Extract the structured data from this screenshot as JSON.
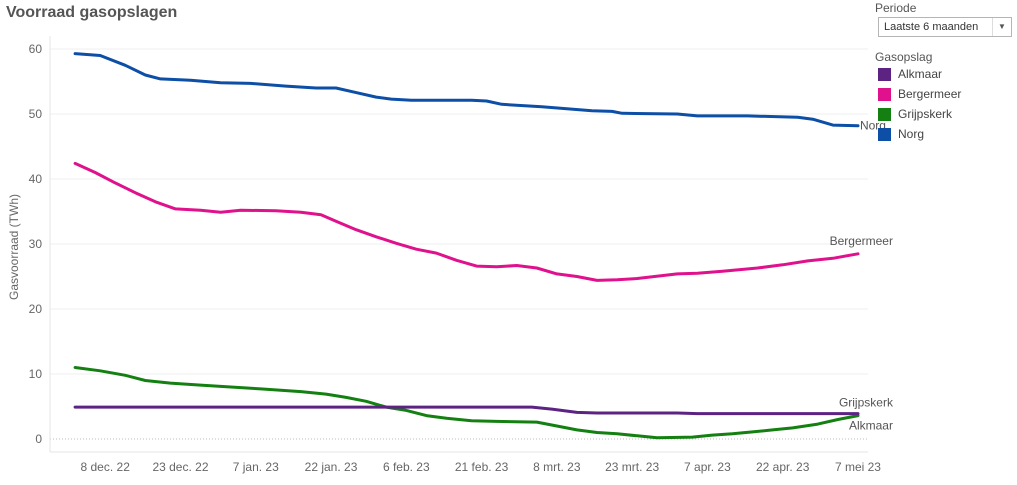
{
  "title": "Voorraad gasopslagen",
  "filters": {
    "period_heading": "Periode",
    "period_value": "Laatste 6 maanden",
    "legend_heading": "Gasopslag"
  },
  "legend": [
    {
      "label": "Alkmaar",
      "color": "#5c2383"
    },
    {
      "label": "Bergermeer",
      "color": "#e0118c"
    },
    {
      "label": "Grijpskerk",
      "color": "#138011"
    },
    {
      "label": "Norg",
      "color": "#0d4ea6"
    }
  ],
  "chart_data": {
    "type": "line",
    "title": "Voorraad gasopslagen",
    "ylabel": "Gasvoorraad (TWh)",
    "xlabel": "",
    "ylim": [
      -2,
      62
    ],
    "yticks": [
      0,
      10,
      20,
      30,
      40,
      50,
      60
    ],
    "xlim": [
      "2022-11-27",
      "2023-05-09"
    ],
    "xticks": [
      {
        "date": "2022-12-08",
        "label": "8 dec. 22"
      },
      {
        "date": "2022-12-23",
        "label": "23 dec. 22"
      },
      {
        "date": "2023-01-07",
        "label": "7 jan. 23"
      },
      {
        "date": "2023-01-22",
        "label": "22 jan. 23"
      },
      {
        "date": "2023-02-06",
        "label": "6 feb. 23"
      },
      {
        "date": "2023-02-21",
        "label": "21 feb. 23"
      },
      {
        "date": "2023-03-08",
        "label": "8 mrt. 23"
      },
      {
        "date": "2023-03-23",
        "label": "23 mrt. 23"
      },
      {
        "date": "2023-04-07",
        "label": "7 apr. 23"
      },
      {
        "date": "2023-04-22",
        "label": "22 apr. 23"
      },
      {
        "date": "2023-05-07",
        "label": "7 mei 23"
      }
    ],
    "grid": true,
    "legend_position": "right",
    "series": [
      {
        "name": "Norg",
        "color": "#0d4ea6",
        "end_label": "Norg",
        "points": [
          [
            "2022-12-02",
            59.3
          ],
          [
            "2022-12-07",
            59.0
          ],
          [
            "2022-12-12",
            57.5
          ],
          [
            "2022-12-16",
            56.0
          ],
          [
            "2022-12-19",
            55.4
          ],
          [
            "2022-12-25",
            55.2
          ],
          [
            "2022-12-31",
            54.8
          ],
          [
            "2023-01-06",
            54.7
          ],
          [
            "2023-01-13",
            54.3
          ],
          [
            "2023-01-19",
            54.0
          ],
          [
            "2023-01-23",
            54.0
          ],
          [
            "2023-01-27",
            53.3
          ],
          [
            "2023-01-31",
            52.6
          ],
          [
            "2023-02-03",
            52.3
          ],
          [
            "2023-02-07",
            52.1
          ],
          [
            "2023-02-19",
            52.1
          ],
          [
            "2023-02-22",
            52.0
          ],
          [
            "2023-02-25",
            51.5
          ],
          [
            "2023-03-05",
            51.1
          ],
          [
            "2023-03-15",
            50.5
          ],
          [
            "2023-03-19",
            50.4
          ],
          [
            "2023-03-21",
            50.1
          ],
          [
            "2023-04-01",
            50.0
          ],
          [
            "2023-04-05",
            49.7
          ],
          [
            "2023-04-15",
            49.7
          ],
          [
            "2023-04-25",
            49.5
          ],
          [
            "2023-04-28",
            49.2
          ],
          [
            "2023-05-02",
            48.3
          ],
          [
            "2023-05-07",
            48.2
          ]
        ]
      },
      {
        "name": "Bergermeer",
        "color": "#e0118c",
        "end_label": "Bergermeer",
        "points": [
          [
            "2022-12-02",
            42.4
          ],
          [
            "2022-12-06",
            41.0
          ],
          [
            "2022-12-10",
            39.4
          ],
          [
            "2022-12-14",
            37.9
          ],
          [
            "2022-12-18",
            36.5
          ],
          [
            "2022-12-22",
            35.4
          ],
          [
            "2022-12-27",
            35.2
          ],
          [
            "2022-12-31",
            34.9
          ],
          [
            "2023-01-04",
            35.2
          ],
          [
            "2023-01-11",
            35.1
          ],
          [
            "2023-01-16",
            34.9
          ],
          [
            "2023-01-20",
            34.5
          ],
          [
            "2023-01-23",
            33.5
          ],
          [
            "2023-01-27",
            32.2
          ],
          [
            "2023-01-31",
            31.1
          ],
          [
            "2023-02-04",
            30.1
          ],
          [
            "2023-02-08",
            29.2
          ],
          [
            "2023-02-12",
            28.6
          ],
          [
            "2023-02-16",
            27.5
          ],
          [
            "2023-02-20",
            26.6
          ],
          [
            "2023-02-24",
            26.5
          ],
          [
            "2023-02-28",
            26.7
          ],
          [
            "2023-03-04",
            26.3
          ],
          [
            "2023-03-08",
            25.4
          ],
          [
            "2023-03-12",
            25.0
          ],
          [
            "2023-03-16",
            24.4
          ],
          [
            "2023-03-20",
            24.5
          ],
          [
            "2023-03-24",
            24.7
          ],
          [
            "2023-04-01",
            25.4
          ],
          [
            "2023-04-05",
            25.5
          ],
          [
            "2023-04-10",
            25.8
          ],
          [
            "2023-04-17",
            26.3
          ],
          [
            "2023-04-22",
            26.8
          ],
          [
            "2023-04-27",
            27.4
          ],
          [
            "2023-05-02",
            27.8
          ],
          [
            "2023-05-07",
            28.5
          ]
        ]
      },
      {
        "name": "Grijpskerk",
        "color": "#138011",
        "end_label": "Grijpskerk",
        "points": [
          [
            "2022-12-02",
            11.0
          ],
          [
            "2022-12-07",
            10.5
          ],
          [
            "2022-12-12",
            9.8
          ],
          [
            "2022-12-16",
            9.0
          ],
          [
            "2022-12-21",
            8.6
          ],
          [
            "2022-12-27",
            8.3
          ],
          [
            "2023-01-02",
            8.0
          ],
          [
            "2023-01-08",
            7.7
          ],
          [
            "2023-01-16",
            7.3
          ],
          [
            "2023-01-21",
            6.9
          ],
          [
            "2023-01-25",
            6.4
          ],
          [
            "2023-01-29",
            5.8
          ],
          [
            "2023-02-02",
            4.9
          ],
          [
            "2023-02-06",
            4.4
          ],
          [
            "2023-02-10",
            3.6
          ],
          [
            "2023-02-14",
            3.2
          ],
          [
            "2023-02-19",
            2.8
          ],
          [
            "2023-02-24",
            2.7
          ],
          [
            "2023-03-04",
            2.6
          ],
          [
            "2023-03-08",
            2.0
          ],
          [
            "2023-03-12",
            1.4
          ],
          [
            "2023-03-16",
            1.0
          ],
          [
            "2023-03-20",
            0.8
          ],
          [
            "2023-03-24",
            0.5
          ],
          [
            "2023-03-28",
            0.2
          ],
          [
            "2023-04-04",
            0.3
          ],
          [
            "2023-04-08",
            0.6
          ],
          [
            "2023-04-12",
            0.8
          ],
          [
            "2023-04-16",
            1.1
          ],
          [
            "2023-04-20",
            1.4
          ],
          [
            "2023-04-24",
            1.7
          ],
          [
            "2023-04-29",
            2.3
          ],
          [
            "2023-05-03",
            3.0
          ],
          [
            "2023-05-07",
            3.6
          ]
        ]
      },
      {
        "name": "Alkmaar",
        "color": "#5c2383",
        "end_label": "Alkmaar",
        "points": [
          [
            "2022-12-02",
            4.9
          ],
          [
            "2023-03-03",
            4.9
          ],
          [
            "2023-03-07",
            4.6
          ],
          [
            "2023-03-12",
            4.1
          ],
          [
            "2023-03-16",
            4.0
          ],
          [
            "2023-04-01",
            4.0
          ],
          [
            "2023-04-05",
            3.9
          ],
          [
            "2023-05-07",
            3.9
          ]
        ]
      }
    ]
  }
}
